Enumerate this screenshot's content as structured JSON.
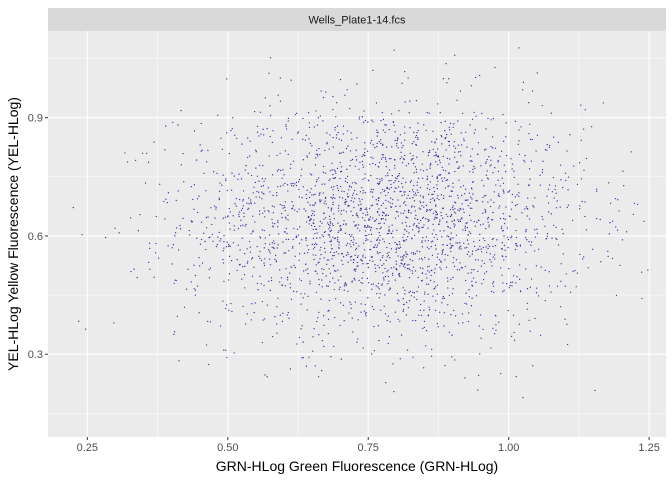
{
  "chart_data": {
    "type": "scatter",
    "title": "",
    "facet_label": "Wells_Plate1-14.fcs",
    "xlabel": "GRN-HLog Green Fluorescence (GRN-HLog)",
    "ylabel": "YEL-HLog Yellow Fluorescence (YEL-HLog)",
    "xlim": [
      0.18,
      1.28
    ],
    "ylim": [
      0.09,
      1.12
    ],
    "x_ticks": [
      0.25,
      0.5,
      0.75,
      1.0,
      1.25
    ],
    "x_tick_labels": [
      "0.25",
      "0.50",
      "0.75",
      "1.00",
      "1.25"
    ],
    "y_ticks": [
      0.3,
      0.6,
      0.9
    ],
    "y_tick_labels": [
      "0.3",
      "0.6",
      "0.9"
    ],
    "grid": true,
    "legend": "none",
    "point_color": "#3d2fa0",
    "panel_background": "#ebebeb",
    "strip_background": "#d9d9d9",
    "series": [
      {
        "points_shown": 2500,
        "x_center": 0.78,
        "x_sd": 0.18,
        "y_center": 0.64,
        "y_sd": 0.15,
        "x_range": [
          0.22,
          1.25
        ],
        "y_range": [
          0.13,
          1.08
        ]
      }
    ]
  }
}
